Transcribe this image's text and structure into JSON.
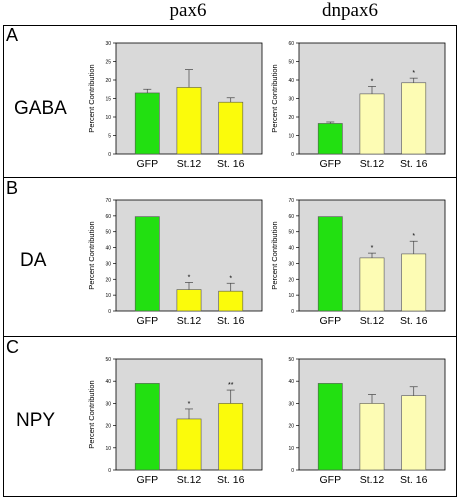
{
  "columns": [
    "pax6",
    "dnpax6"
  ],
  "colors": {
    "gfp": "#22e011",
    "pax6": "#fbfb0b",
    "dnpax6": "#fdfcb4",
    "plot_bg": "#d9d9d9"
  },
  "panels": [
    {
      "letter": "A",
      "label": "GABA"
    },
    {
      "letter": "B",
      "label": "DA"
    },
    {
      "letter": "C",
      "label": "NPY"
    }
  ],
  "chart_data": [
    {
      "type": "bar",
      "id": "A-pax6",
      "title": "",
      "xlabel": "",
      "ylabel": "Percent Contribution",
      "categories": [
        "GFP",
        "St.12",
        "St. 16"
      ],
      "values": [
        16.5,
        18,
        14
      ],
      "errors": [
        1,
        4.8,
        1.2
      ],
      "annotations": [
        "",
        "",
        ""
      ],
      "ylim": [
        0,
        30
      ],
      "yticks": [
        0,
        5,
        10,
        15,
        20,
        25,
        30
      ]
    },
    {
      "type": "bar",
      "id": "A-dnpax6",
      "title": "",
      "xlabel": "",
      "ylabel": "Percent Contribution",
      "categories": [
        "GFP",
        "St.12",
        "St. 16"
      ],
      "values": [
        16.5,
        32.5,
        38.5
      ],
      "errors": [
        0.8,
        4,
        2.5
      ],
      "annotations": [
        "",
        "*",
        "*"
      ],
      "ylim": [
        0,
        60
      ],
      "yticks": [
        0,
        10,
        20,
        30,
        40,
        50,
        60
      ]
    },
    {
      "type": "bar",
      "id": "B-pax6",
      "title": "",
      "xlabel": "",
      "ylabel": "Percent Contribution",
      "categories": [
        "GFP",
        "St.12",
        "St. 16"
      ],
      "values": [
        59.5,
        13.5,
        12.5
      ],
      "errors": [
        0,
        4.5,
        5
      ],
      "annotations": [
        "",
        "*",
        "*"
      ],
      "ylim": [
        0,
        70
      ],
      "yticks": [
        0,
        10,
        20,
        30,
        40,
        50,
        60,
        70
      ]
    },
    {
      "type": "bar",
      "id": "B-dnpax6",
      "title": "",
      "xlabel": "",
      "ylabel": "Percent Contribution",
      "categories": [
        "GFP",
        "St.12",
        "St. 16"
      ],
      "values": [
        59.5,
        33.5,
        36
      ],
      "errors": [
        0,
        3,
        8
      ],
      "annotations": [
        "",
        "*",
        "*"
      ],
      "ylim": [
        0,
        70
      ],
      "yticks": [
        0,
        10,
        20,
        30,
        40,
        50,
        60,
        70
      ]
    },
    {
      "type": "bar",
      "id": "C-pax6",
      "title": "",
      "xlabel": "",
      "ylabel": "Percent Contribution",
      "categories": [
        "GFP",
        "St.12",
        "St. 16"
      ],
      "values": [
        39,
        23,
        30
      ],
      "errors": [
        0,
        4.5,
        6
      ],
      "annotations": [
        "",
        "*",
        "**"
      ],
      "ylim": [
        0,
        50
      ],
      "yticks": [
        0,
        10,
        20,
        30,
        40,
        50
      ]
    },
    {
      "type": "bar",
      "id": "C-dnpax6",
      "title": "",
      "xlabel": "",
      "ylabel": "",
      "categories": [
        "GFP",
        "St.12",
        "St. 16"
      ],
      "values": [
        39,
        30,
        33.5
      ],
      "errors": [
        0,
        4,
        4
      ],
      "annotations": [
        "",
        "",
        ""
      ],
      "ylim": [
        0,
        50
      ],
      "yticks": [
        0,
        10,
        20,
        30,
        40,
        50
      ]
    }
  ]
}
